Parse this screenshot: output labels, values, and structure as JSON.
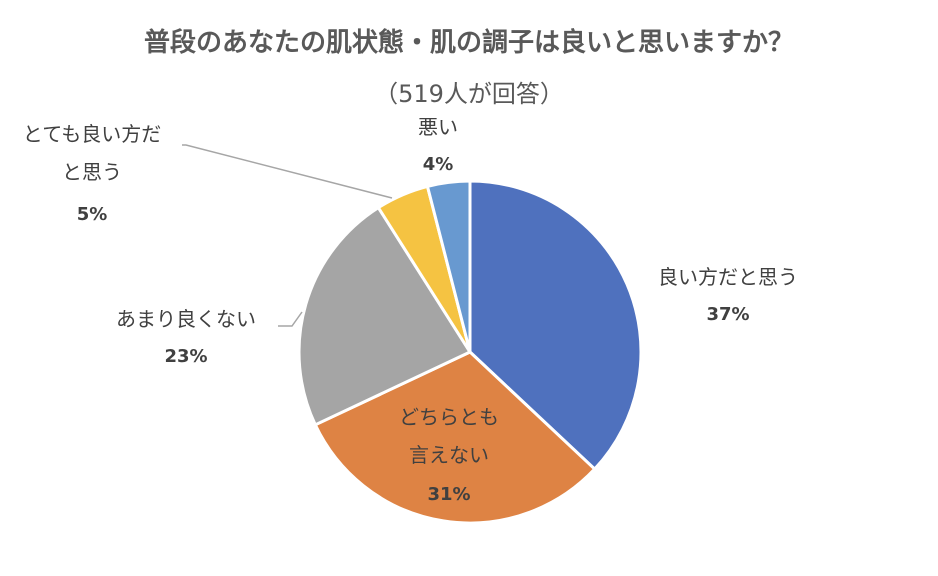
{
  "chart_data": {
    "type": "pie",
    "title": "普段のあなたの肌状態・肌の調子は良いと思いますか？",
    "subtitle": "（519人が回答）",
    "slices": [
      {
        "label_lines": [
          "良い方だと思う"
        ],
        "value": 37,
        "value_label": "37%",
        "color": "#4F71BE"
      },
      {
        "label_lines": [
          "どちらとも",
          "言えない"
        ],
        "value": 31,
        "value_label": "31%",
        "color": "#DE8344"
      },
      {
        "label_lines": [
          "あまり良くない"
        ],
        "value": 23,
        "value_label": "23%",
        "color": "#A5A5A5"
      },
      {
        "label_lines": [
          "とても良い方だ",
          "と思う"
        ],
        "value": 5,
        "value_label": "5%",
        "color": "#F5C342"
      },
      {
        "label_lines": [
          "悪い"
        ],
        "value": 4,
        "value_label": "4%",
        "color": "#6899D0"
      }
    ]
  }
}
